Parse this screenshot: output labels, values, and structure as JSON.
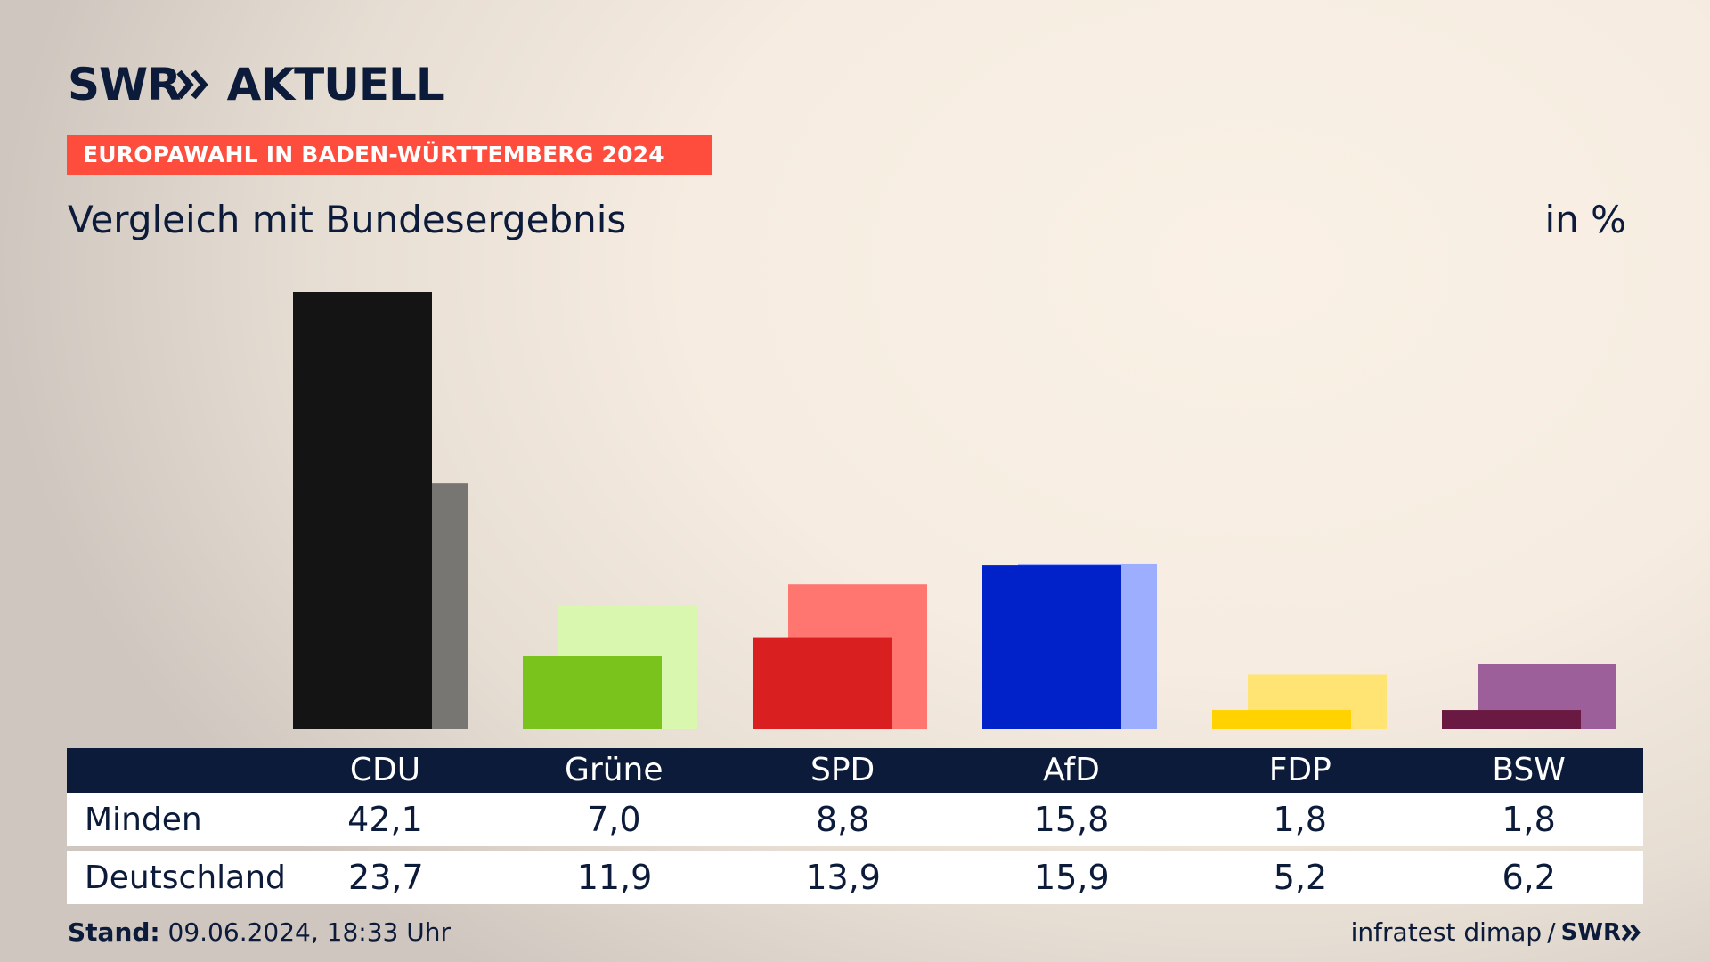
{
  "brand": {
    "logo_swr": "SWR",
    "logo_aktuell": "AKTUELL"
  },
  "banner": "EUROPAWAHL IN BADEN-WÜRTTEMBERG 2024",
  "subtitle": "Vergleich mit Bundesergebnis",
  "unit": "in %",
  "chart_data": {
    "type": "bar",
    "categories": [
      "CDU",
      "Grüne",
      "SPD",
      "AfD",
      "FDP",
      "BSW"
    ],
    "series": [
      {
        "name": "Minden",
        "values": [
          42.1,
          7.0,
          8.8,
          15.8,
          1.8,
          1.8
        ]
      },
      {
        "name": "Deutschland",
        "values": [
          23.7,
          11.9,
          13.9,
          15.9,
          5.2,
          6.2
        ]
      }
    ],
    "display_values": {
      "Minden": [
        "42,1",
        "7,0",
        "8,8",
        "15,8",
        "1,8",
        "1,8"
      ],
      "Deutschland": [
        "23,7",
        "11,9",
        "13,9",
        "15,9",
        "5,2",
        "6,2"
      ]
    },
    "colors": {
      "primary": [
        "#141414",
        "#7ac21c",
        "#d91f1f",
        "#0022c8",
        "#ffd200",
        "#6a1a42"
      ],
      "secondary": [
        "#787672",
        "#d9f7ae",
        "#ff7570",
        "#9daeff",
        "#ffe373",
        "#9d5f99"
      ]
    },
    "ylim": [
      0,
      42.1
    ],
    "grid": false
  },
  "table": {
    "row_labels": [
      "Minden",
      "Deutschland"
    ]
  },
  "footer": {
    "stand_label": "Stand:",
    "stand_value": "09.06.2024, 18:33 Uhr",
    "source": "infratest dimap",
    "separator": "/",
    "source_logo": "SWR"
  }
}
